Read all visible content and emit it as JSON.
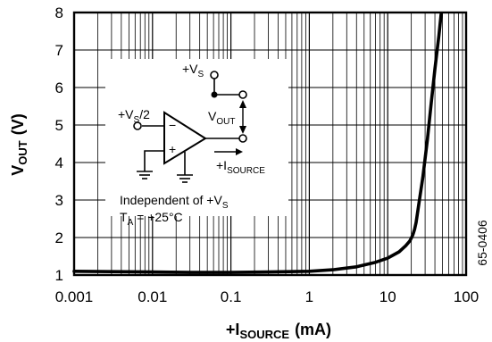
{
  "chart_data": {
    "type": "line",
    "x_scale": "log",
    "xlim": [
      0.001,
      100
    ],
    "ylim": [
      1,
      8
    ],
    "x_tick_labels": [
      "0.001",
      "0.01",
      "0.1",
      "1",
      "10",
      "100"
    ],
    "y_tick_labels": [
      "1",
      "2",
      "3",
      "4",
      "5",
      "6",
      "7",
      "8"
    ],
    "grid": true,
    "series": [
      {
        "x": [
          0.001,
          0.003,
          0.01,
          0.03,
          0.1,
          0.3,
          1,
          2,
          4,
          7,
          10,
          14,
          17,
          19,
          20,
          21,
          22,
          23,
          25,
          28,
          32,
          36,
          40,
          45,
          48
        ],
        "y": [
          1.1,
          1.09,
          1.08,
          1.07,
          1.07,
          1.08,
          1.1,
          1.14,
          1.22,
          1.34,
          1.45,
          1.62,
          1.78,
          1.9,
          1.98,
          2.08,
          2.22,
          2.4,
          2.9,
          3.6,
          4.6,
          5.6,
          6.5,
          7.4,
          7.95
        ]
      }
    ],
    "xlabel": {
      "main": "+I",
      "sub": "SOURCE",
      "unit": "(mA)"
    },
    "ylabel": {
      "main": "V",
      "sub": "OUT",
      "unit": "(V)"
    }
  },
  "inset": {
    "supply_label": "+V",
    "supply_sub": "S",
    "input_label": "+V",
    "input_sub": "S",
    "input_suffix": "/2",
    "minus_sign": "−",
    "plus_sign": "+",
    "vout_label": "V",
    "vout_sub": "OUT",
    "current_label": "+I",
    "current_sub": "SOURCE",
    "note1_prefix": "Independent of +V",
    "note1_sub": "S",
    "note2_prefix": "T",
    "note2_sub": "A",
    "note2_suffix": " = +25°C"
  },
  "figure_id": "65-0406"
}
